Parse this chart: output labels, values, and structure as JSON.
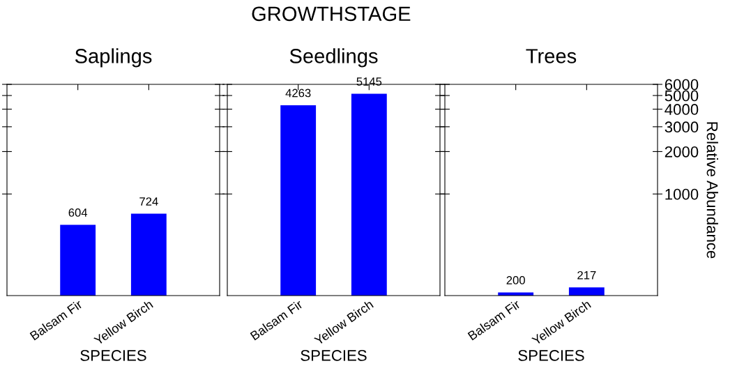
{
  "chart_data": [
    {
      "type": "bar",
      "title": "Saplings",
      "xlabel": "SPECIES",
      "annotations": [
        "GROWTHSTAGE"
      ],
      "categories": [
        "Balsam Fir",
        "Yellow Birch"
      ],
      "values": [
        604,
        724
      ],
      "color": "#0000ff",
      "log": true,
      "ylim": [
        190,
        6000
      ],
      "yticks": [
        1000,
        2000,
        3000,
        4000,
        5000,
        6000
      ],
      "data_labels": true,
      "tick_labels": "x",
      "grid": false,
      "legend": false
    },
    {
      "type": "bar",
      "title": "Seedlings",
      "xlabel": "SPECIES",
      "categories": [
        "Balsam Fir",
        "Yellow Birch"
      ],
      "values": [
        4263,
        5145
      ],
      "color": "#0000ff",
      "log": true,
      "ylim": [
        190,
        6000
      ],
      "yticks": [
        1000,
        2000,
        3000,
        4000,
        5000,
        6000
      ],
      "data_labels": true,
      "tick_labels": "x",
      "grid": false,
      "legend": false
    },
    {
      "type": "bar",
      "title": "Trees",
      "xlabel": "SPECIES",
      "ylabel": "Relative Abundance",
      "categories": [
        "Balsam Fir",
        "Yellow Birch"
      ],
      "values": [
        200,
        217
      ],
      "color": "#0000ff",
      "log": true,
      "ylim": [
        190,
        6000
      ],
      "yticks": [
        1000,
        2000,
        3000,
        4000,
        5000,
        6000
      ],
      "data_labels": true,
      "grid": false,
      "legend": false
    }
  ]
}
